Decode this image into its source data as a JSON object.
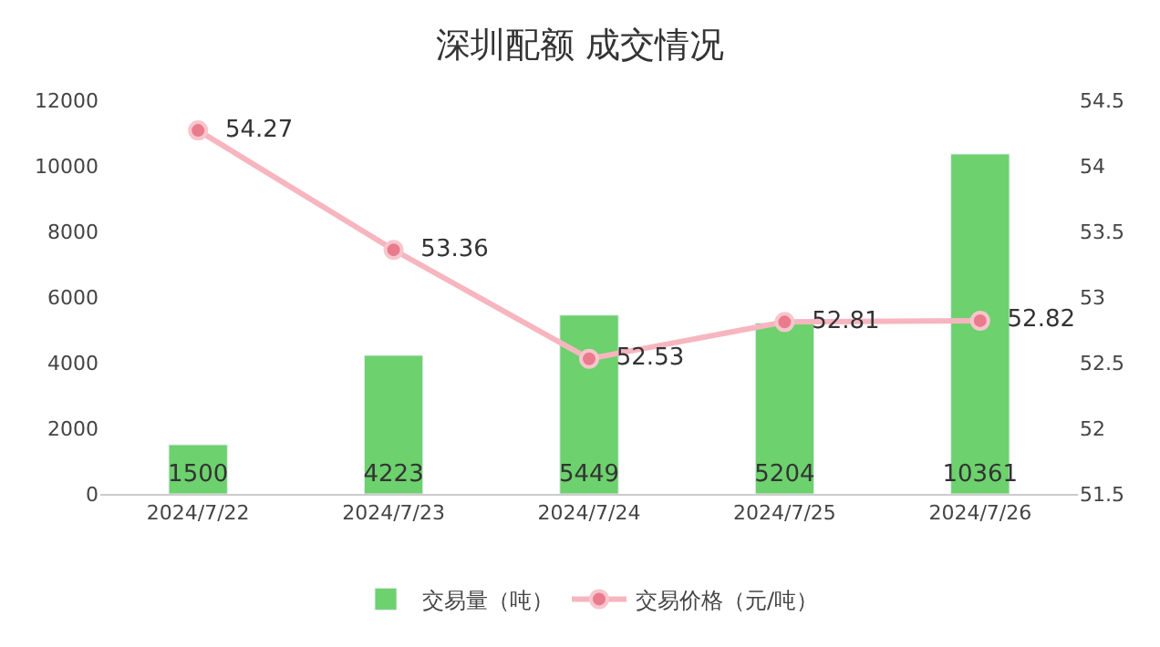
{
  "chart_data": {
    "type": "bar",
    "title": "深圳配额 成交情况",
    "categories": [
      "2024/7/22",
      "2024/7/23",
      "2024/7/24",
      "2024/7/25",
      "2024/7/26"
    ],
    "series": [
      {
        "name": "交易量（吨）",
        "color": "#6dd16d",
        "values": [
          1500,
          4223,
          5449,
          5204,
          10361
        ]
      },
      {
        "name": "交易价格（元/吨）",
        "type": "line",
        "axis": "y2",
        "color": "#f7b6bf",
        "values": [
          54.27,
          53.36,
          52.53,
          52.81,
          52.82
        ]
      }
    ],
    "ylim": [
      0,
      12000
    ],
    "yticks": [
      0,
      2000,
      4000,
      6000,
      8000,
      10000,
      12000
    ],
    "y2lim": [
      51.5,
      54.5
    ],
    "y2ticks": [
      51.5,
      52,
      52.5,
      53,
      53.5,
      54,
      54.5
    ],
    "data_labels": true,
    "legend": "bottom",
    "marker": "circle",
    "line_style": "solid"
  }
}
